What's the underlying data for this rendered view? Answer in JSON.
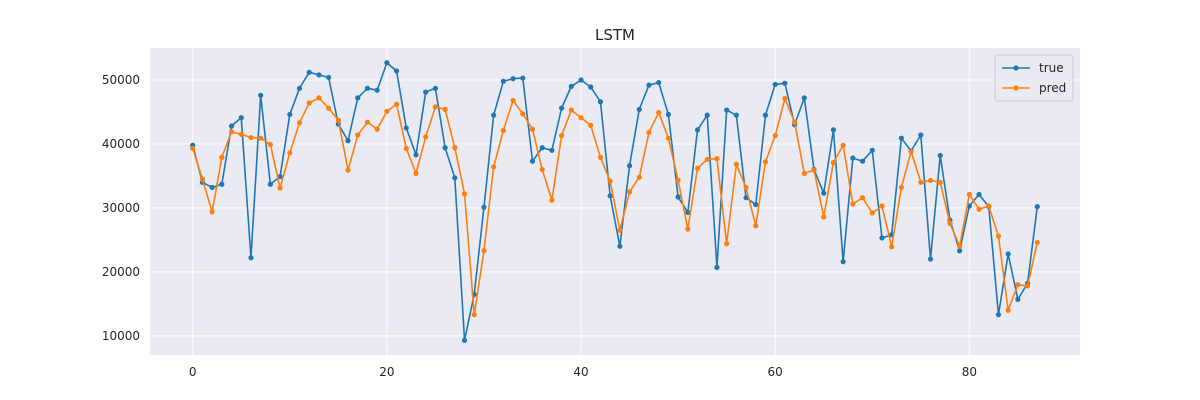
{
  "chart_data": {
    "type": "line",
    "title": "LSTM",
    "xlabel": "",
    "ylabel": "",
    "xlim": [
      -4.4,
      91.4
    ],
    "ylim": [
      7000,
      55000
    ],
    "x_ticks": [
      0,
      20,
      40,
      60,
      80
    ],
    "y_ticks": [
      10000,
      20000,
      30000,
      40000,
      50000
    ],
    "grid": true,
    "legend_position": "top-right",
    "x": [
      0,
      1,
      2,
      3,
      4,
      5,
      6,
      7,
      8,
      9,
      10,
      11,
      12,
      13,
      14,
      15,
      16,
      17,
      18,
      19,
      20,
      21,
      22,
      23,
      24,
      25,
      26,
      27,
      28,
      29,
      30,
      31,
      32,
      33,
      34,
      35,
      36,
      37,
      38,
      39,
      40,
      41,
      42,
      43,
      44,
      45,
      46,
      47,
      48,
      49,
      50,
      51,
      52,
      53,
      54,
      55,
      56,
      57,
      58,
      59,
      60,
      61,
      62,
      63,
      64,
      65,
      66,
      67,
      68,
      69,
      70,
      71,
      72,
      73,
      74,
      75,
      76,
      77,
      78,
      79,
      80,
      81,
      82,
      83,
      84,
      85,
      86,
      87
    ],
    "series": [
      {
        "name": "true",
        "color": "#1f77b4",
        "values": [
          39800,
          34000,
          33200,
          33700,
          42800,
          44100,
          22200,
          47600,
          33700,
          34900,
          44600,
          48700,
          51200,
          50800,
          50400,
          43100,
          40500,
          47200,
          48700,
          48400,
          52700,
          51400,
          42500,
          38300,
          48100,
          48700,
          39400,
          34700,
          9300,
          16500,
          30100,
          44500,
          49800,
          50200,
          50300,
          37300,
          39400,
          39000,
          45600,
          49000,
          50000,
          48900,
          46600,
          31900,
          24000,
          36600,
          45400,
          49200,
          49600,
          44600,
          31700,
          29300,
          42200,
          44500,
          20700,
          45300,
          44500,
          31600,
          30500,
          44500,
          49300,
          49500,
          43000,
          47200,
          36000,
          32300,
          42200,
          21600,
          37800,
          37300,
          39000,
          25300,
          25800,
          40900,
          38900,
          41400,
          22000,
          38200,
          28100,
          23300,
          30300,
          32100,
          30200,
          13300,
          22800,
          15700,
          18200,
          30200
        ]
      },
      {
        "name": "pred",
        "color": "#ff7f0e",
        "values": [
          39300,
          34500,
          29400,
          37900,
          41900,
          41500,
          41000,
          40900,
          39900,
          33100,
          38600,
          43300,
          46400,
          47200,
          45600,
          43700,
          35900,
          41400,
          43400,
          42300,
          45100,
          46200,
          39300,
          35400,
          41100,
          45800,
          45400,
          39400,
          32200,
          13300,
          23300,
          36400,
          42100,
          46800,
          44700,
          42300,
          36000,
          31200,
          41300,
          45300,
          44100,
          42900,
          37900,
          34200,
          26500,
          32500,
          34800,
          41800,
          44900,
          40900,
          34300,
          26700,
          36200,
          37600,
          37700,
          24400,
          36800,
          33200,
          27200,
          37200,
          41300,
          47100,
          43400,
          35400,
          35900,
          28600,
          37100,
          39800,
          30600,
          31600,
          29200,
          30300,
          23900,
          33200,
          38800,
          34000,
          34300,
          34000,
          27600,
          24000,
          32100,
          29800,
          30300,
          25600,
          14000,
          18000,
          17800,
          24600
        ]
      }
    ]
  }
}
